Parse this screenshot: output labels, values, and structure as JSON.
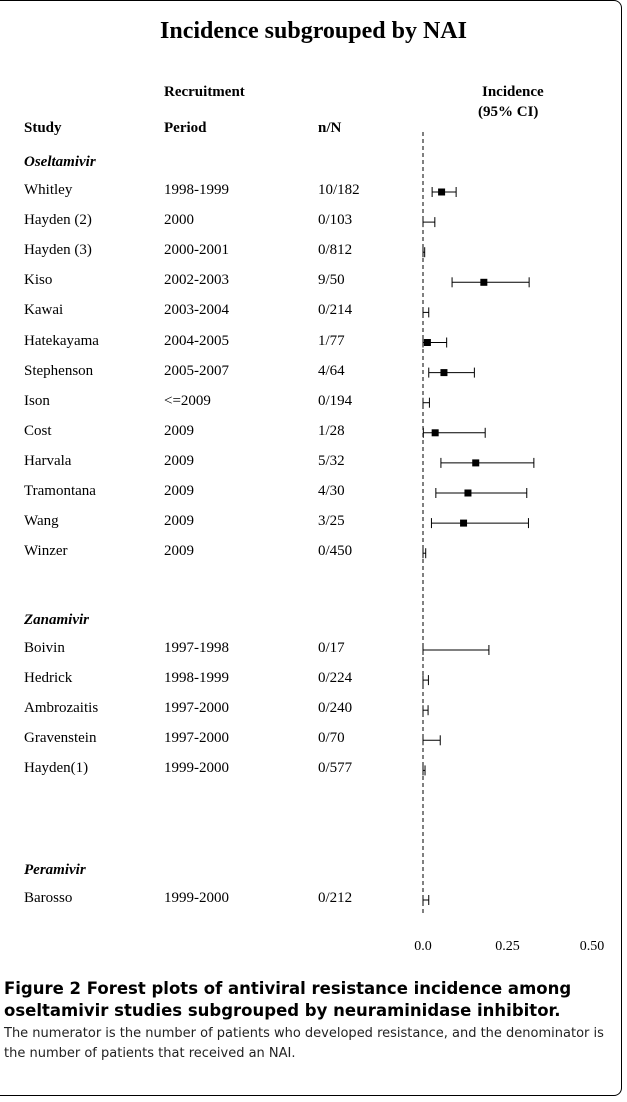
{
  "chart_data": {
    "type": "forest",
    "title": "Incidence subgrouped by NAI",
    "columns": {
      "study": "Study",
      "period_line1": "Recruitment",
      "period_line2": "Period",
      "nn": "n/N",
      "incidence_line1": "Incidence",
      "incidence_line2": "(95% CI)"
    },
    "xlim": [
      0,
      0.5
    ],
    "x_ticks": [
      "0.0",
      "0.25",
      "0.50"
    ],
    "groups": [
      {
        "name": "Oseltamivir",
        "studies": [
          {
            "study": "Whitley",
            "period": "1998-1999",
            "nn": "10/182",
            "est": 0.055,
            "lo": 0.027,
            "hi": 0.098
          },
          {
            "study": "Hayden (2)",
            "period": "2000",
            "nn": "0/103",
            "est": 0.0,
            "lo": 0.0,
            "hi": 0.035
          },
          {
            "study": "Hayden (3)",
            "period": "2000-2001",
            "nn": "0/812",
            "est": 0.0,
            "lo": 0.0,
            "hi": 0.005
          },
          {
            "study": "Kiso",
            "period": "2002-2003",
            "nn": "9/50",
            "est": 0.18,
            "lo": 0.086,
            "hi": 0.314
          },
          {
            "study": "Kawai",
            "period": "2003-2004",
            "nn": "0/214",
            "est": 0.0,
            "lo": 0.0,
            "hi": 0.017
          },
          {
            "study": "Hatekayama",
            "period": "2004-2005",
            "nn": "1/77",
            "est": 0.013,
            "lo": 0.0,
            "hi": 0.07
          },
          {
            "study": "Stephenson",
            "period": "2005-2007",
            "nn": "4/64",
            "est": 0.062,
            "lo": 0.017,
            "hi": 0.152
          },
          {
            "study": "Ison",
            "period": "<=2009",
            "nn": "0/194",
            "est": 0.0,
            "lo": 0.0,
            "hi": 0.019
          },
          {
            "study": "Cost",
            "period": "2009",
            "nn": "1/28",
            "est": 0.036,
            "lo": 0.001,
            "hi": 0.184
          },
          {
            "study": "Harvala",
            "period": "2009",
            "nn": "5/32",
            "est": 0.156,
            "lo": 0.053,
            "hi": 0.328
          },
          {
            "study": "Tramontana",
            "period": "2009",
            "nn": "4/30",
            "est": 0.133,
            "lo": 0.038,
            "hi": 0.307
          },
          {
            "study": "Wang",
            "period": "2009",
            "nn": "3/25",
            "est": 0.12,
            "lo": 0.025,
            "hi": 0.312
          },
          {
            "study": "Winzer",
            "period": "2009",
            "nn": "0/450",
            "est": 0.0,
            "lo": 0.0,
            "hi": 0.008
          }
        ]
      },
      {
        "name": "Zanamivir",
        "studies": [
          {
            "study": "Boivin",
            "period": "1997-1998",
            "nn": "0/17",
            "est": 0.0,
            "lo": 0.0,
            "hi": 0.195
          },
          {
            "study": "Hedrick",
            "period": "1998-1999",
            "nn": "0/224",
            "est": 0.0,
            "lo": 0.0,
            "hi": 0.016
          },
          {
            "study": "Ambrozaitis",
            "period": "1997-2000",
            "nn": "0/240",
            "est": 0.0,
            "lo": 0.0,
            "hi": 0.015
          },
          {
            "study": "Gravenstein",
            "period": "1997-2000",
            "nn": "0/70",
            "est": 0.0,
            "lo": 0.0,
            "hi": 0.051
          },
          {
            "study": "Hayden(1)",
            "period": "1999-2000",
            "nn": "0/577",
            "est": 0.0,
            "lo": 0.0,
            "hi": 0.006
          }
        ]
      },
      {
        "name": "Peramivir",
        "studies": [
          {
            "study": "Barosso",
            "period": "1999-2000",
            "nn": "0/212",
            "est": 0.0,
            "lo": 0.0,
            "hi": 0.017
          }
        ]
      }
    ]
  },
  "caption": {
    "title": "Figure 2 Forest plots of antiviral resistance incidence among oseltamivir studies subgrouped by neuraminidase inhibitor.",
    "body": "The numerator is the number of patients who developed resistance, and the denominator is the number of patients that received an NAI."
  }
}
